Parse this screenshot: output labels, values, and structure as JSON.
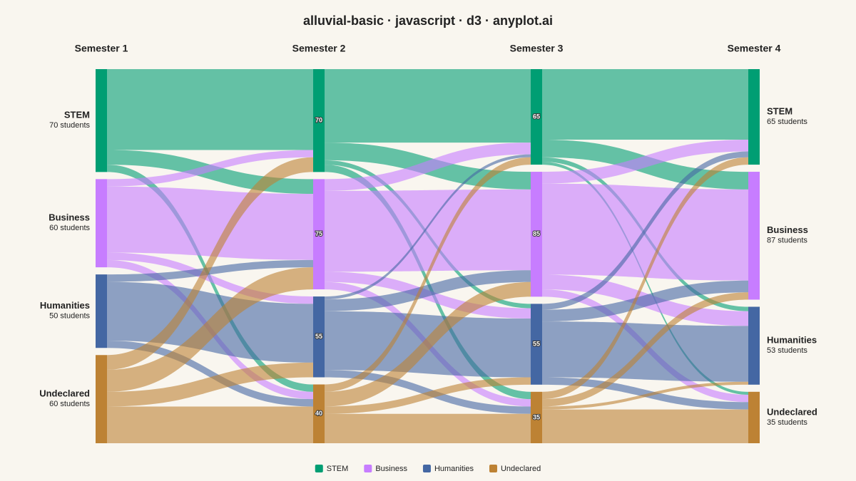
{
  "chart_data": {
    "type": "alluvial",
    "title": "alluvial-basic · javascript · d3 · anyplot.ai",
    "categories": [
      "STEM",
      "Business",
      "Humanities",
      "Undeclared"
    ],
    "colors": [
      "#009e73",
      "#c77dff",
      "#4467a3",
      "#bd8234"
    ],
    "stages": [
      {
        "name": "Semester 1",
        "values": [
          70,
          60,
          50,
          60
        ],
        "value_labels": [
          "70 students",
          "60 students",
          "50 students",
          "60 students"
        ]
      },
      {
        "name": "Semester 2",
        "values": [
          70,
          75,
          55,
          40
        ]
      },
      {
        "name": "Semester 3",
        "values": [
          65,
          85,
          55,
          35
        ]
      },
      {
        "name": "Semester 4",
        "values": [
          65,
          87,
          53,
          35
        ],
        "value_labels": [
          "65 students",
          "87 students",
          "53 students",
          "35 students"
        ]
      }
    ],
    "flows": [
      [
        [
          55,
          10,
          0,
          5
        ],
        [
          5,
          45,
          5,
          5
        ],
        [
          0,
          5,
          40,
          5
        ],
        [
          10,
          15,
          10,
          25
        ]
      ],
      [
        [
          50,
          12,
          3,
          5
        ],
        [
          8,
          55,
          7,
          5
        ],
        [
          2,
          8,
          40,
          5
        ],
        [
          5,
          10,
          5,
          20
        ]
      ],
      [
        [
          48,
          12,
          3,
          2
        ],
        [
          8,
          62,
          10,
          5
        ],
        [
          4,
          8,
          38,
          5
        ],
        [
          5,
          5,
          2,
          23
        ]
      ]
    ]
  }
}
